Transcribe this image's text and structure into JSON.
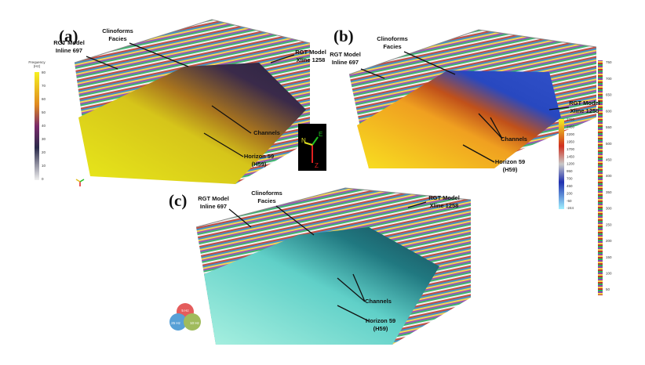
{
  "panels": [
    {
      "label": "(a)",
      "clinoforms": [
        "Clinoforms",
        "Facies"
      ],
      "inline": [
        "RGT Model",
        "Inline 697"
      ],
      "xline": [
        "RGT Model",
        "Xline 1258"
      ],
      "channels": [
        "Channels"
      ],
      "horizon": [
        "Horizon 59",
        "(H59)"
      ]
    },
    {
      "label": "(b)",
      "clinoforms": [
        "Clinoforms",
        "Facies"
      ],
      "inline": [
        "RGT Model",
        "Inline 697"
      ],
      "xline": [
        "RGT Model",
        "Xline 1258"
      ],
      "channels": [
        "Channels"
      ],
      "horizon": [
        "Horizon 59",
        "(H59)"
      ]
    },
    {
      "label": "(c)",
      "clinoforms": [
        "Clinoforms",
        "Facies"
      ],
      "inline": [
        "RGT Model",
        "Inline 697"
      ],
      "xline": [
        "RGT Model",
        "Xline 1258"
      ],
      "channels": [
        "Channels"
      ],
      "horizon": [
        "Horizon 59",
        "(H59)"
      ]
    }
  ],
  "frequency_colorbar": {
    "title": [
      "Frequency",
      "(Hz)"
    ],
    "ticks": [
      "80",
      "70",
      "60",
      "50",
      "40",
      "30",
      "20",
      "10",
      "0"
    ]
  },
  "amplitude_colorbar": {
    "ticks": [
      "2700",
      "2450",
      "2200",
      "1950",
      "1700",
      "1450",
      "1200",
      "950",
      "700",
      "450",
      "200",
      "-50",
      "-244"
    ]
  },
  "rgt_colorbar": {
    "ticks": [
      "750",
      "700",
      "650",
      "600",
      "550",
      "500",
      "450",
      "400",
      "350",
      "300",
      "250",
      "200",
      "150",
      "100",
      "50"
    ]
  },
  "compass": {
    "north": "N",
    "east": "E",
    "down": "Z"
  },
  "rgb_blend": {
    "red": "5 Hz",
    "blue": "25 Hz",
    "green": "10 Hz"
  }
}
